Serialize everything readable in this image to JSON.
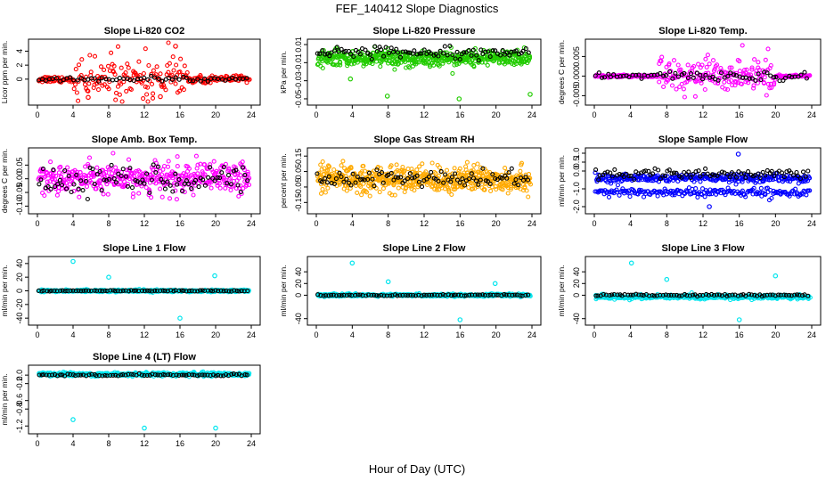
{
  "title": "FEF_140412  Slope Diagnostics",
  "xlabel": "Hour of Day (UTC)",
  "colors": {
    "red": "#ff0000",
    "green": "#22cc00",
    "magenta": "#ff00ff",
    "orange": "#ffaa00",
    "blue": "#0000ff",
    "cyan": "#00e5ee",
    "black": "#000000"
  },
  "chart_data": [
    {
      "type": "scatter",
      "title": "Slope Li-820 CO2",
      "ylabel": "Licor ppm per min.",
      "xlim": [
        0,
        24
      ],
      "ylim": [
        -3.2,
        5.2
      ],
      "xticks": [
        "0",
        "4",
        "8",
        "12",
        "16",
        "20",
        "24"
      ],
      "yticks": [
        "0",
        "2",
        "4"
      ],
      "series": [
        {
          "color": "red",
          "pattern": {
            "center": 0.0,
            "spread": 0.35,
            "burst": 3.0,
            "burst_range": [
              4,
              17
            ],
            "count": 260
          },
          "outliers": [
            [
              5.7,
              -2.6
            ],
            [
              15.5,
              4.7
            ],
            [
              13.8,
              -2.5
            ]
          ]
        },
        {
          "color": "black",
          "pattern": {
            "center": 0.0,
            "spread": 0.2,
            "count": 60
          }
        }
      ]
    },
    {
      "type": "scatter",
      "title": "Slope Li-820 Pressure",
      "ylabel": "kPa per min.",
      "xlim": [
        0,
        24
      ],
      "ylim": [
        -0.053,
        0.012
      ],
      "xticks": [
        "0",
        "4",
        "8",
        "12",
        "16",
        "20",
        "24"
      ],
      "yticks": [
        "-0.05",
        "-0.03",
        "-0.01",
        "0.01"
      ],
      "series": [
        {
          "color": "green",
          "pattern": {
            "center": -0.005,
            "spread": 0.006,
            "count": 520
          },
          "outliers": [
            [
              3.8,
              -0.028
            ],
            [
              7.9,
              -0.047
            ],
            [
              15.9,
              -0.05
            ],
            [
              23.8,
              -0.045
            ]
          ]
        },
        {
          "color": "black",
          "pattern": {
            "center": 0.002,
            "spread": 0.004,
            "count": 90
          }
        }
      ]
    },
    {
      "type": "scatter",
      "title": "Slope Li-820 Temp.",
      "ylabel": "degrees C per min.",
      "xlim": [
        0,
        24
      ],
      "ylim": [
        -0.0065,
        0.0085
      ],
      "xticks": [
        "0",
        "4",
        "8",
        "12",
        "16",
        "20",
        "24"
      ],
      "yticks": [
        "-0.005",
        "0.000",
        "0.005"
      ],
      "series": [
        {
          "color": "magenta",
          "pattern": {
            "center": 0.0,
            "spread": 0.0002,
            "burst": 0.004,
            "burst_range": [
              7,
              20
            ],
            "count": 340
          }
        },
        {
          "color": "black",
          "pattern": {
            "center": 0.0,
            "spread": 0.0008,
            "count": 70
          }
        }
      ]
    },
    {
      "type": "scatter",
      "title": "Slope Amb. Box Temp.",
      "ylabel": "degrees C per min.",
      "xlim": [
        0,
        24
      ],
      "ylim": [
        -0.115,
        0.1
      ],
      "xticks": [
        "0",
        "4",
        "8",
        "12",
        "16",
        "20",
        "24"
      ],
      "yticks": [
        "-0.10",
        "-0.05",
        "0.00",
        "0.05"
      ],
      "series": [
        {
          "color": "magenta",
          "pattern": {
            "center": 0.0,
            "spread": 0.04,
            "count": 420
          }
        },
        {
          "color": "black",
          "pattern": {
            "center": 0.0,
            "spread": 0.04,
            "count": 90
          }
        }
      ]
    },
    {
      "type": "scatter",
      "title": "Slope Gas Stream RH",
      "ylabel": "percent per min.",
      "xlim": [
        0,
        24
      ],
      "ylim": [
        -0.2,
        0.18
      ],
      "xticks": [
        "0",
        "4",
        "8",
        "12",
        "16",
        "20",
        "24"
      ],
      "yticks": [
        "-0.15",
        "-0.05",
        "0.05",
        "0.15"
      ],
      "series": [
        {
          "color": "orange",
          "pattern": {
            "center": 0.0,
            "spread": 0.06,
            "count": 560
          }
        },
        {
          "color": "black",
          "pattern": {
            "center": 0.0,
            "spread": 0.04,
            "count": 90
          }
        }
      ]
    },
    {
      "type": "scatter",
      "title": "Slope Sample Flow",
      "ylabel": "ml/min per min.",
      "xlim": [
        0,
        24
      ],
      "ylim": [
        -2.2,
        1.1
      ],
      "xticks": [
        "0",
        "4",
        "8",
        "12",
        "16",
        "20",
        "24"
      ],
      "yticks": [
        "-2.0",
        "-1.0",
        "0.0",
        "0.5",
        "1.0"
      ],
      "series": [
        {
          "color": "blue",
          "pattern": {
            "center": -0.4,
            "spread": 0.15,
            "count": 300
          }
        },
        {
          "color": "blue",
          "pattern": {
            "center": -1.2,
            "spread": 0.18,
            "count": 200
          },
          "outliers": [
            [
              12.7,
              -2.0
            ],
            [
              15.9,
              0.95
            ]
          ]
        },
        {
          "color": "black",
          "pattern": {
            "center": -0.2,
            "spread": 0.2,
            "count": 90
          }
        }
      ]
    },
    {
      "type": "scatter",
      "title": "Slope Line 1 Flow",
      "ylabel": "ml/min per min.",
      "xlim": [
        0,
        24
      ],
      "ylim": [
        -45,
        45
      ],
      "xticks": [
        "0",
        "4",
        "8",
        "12",
        "16",
        "20",
        "24"
      ],
      "yticks": [
        "-40",
        "-20",
        "0",
        "20",
        "40"
      ],
      "series": [
        {
          "color": "cyan",
          "pattern": {
            "center": 0.0,
            "spread": 1.2,
            "count": 420
          },
          "outliers": [
            [
              4.0,
              43
            ],
            [
              8.0,
              20
            ],
            [
              16.0,
              -40
            ],
            [
              19.9,
              22
            ]
          ]
        },
        {
          "color": "black",
          "pattern": {
            "center": 0.0,
            "spread": 0.5,
            "count": 80
          }
        }
      ]
    },
    {
      "type": "scatter",
      "title": "Slope Line 2 Flow",
      "ylabel": "ml/min per min.",
      "xlim": [
        0,
        24
      ],
      "ylim": [
        -45,
        60
      ],
      "xticks": [
        "0",
        "4",
        "8",
        "12",
        "16",
        "20",
        "24"
      ],
      "yticks": [
        "-40",
        "0",
        "20",
        "40"
      ],
      "series": [
        {
          "color": "cyan",
          "pattern": {
            "center": 0.0,
            "spread": 1.5,
            "count": 420
          },
          "outliers": [
            [
              4.0,
              55
            ],
            [
              8.0,
              23
            ],
            [
              16.0,
              -42
            ],
            [
              19.9,
              20
            ]
          ]
        },
        {
          "color": "black",
          "pattern": {
            "center": 0.0,
            "spread": 0.8,
            "count": 80
          }
        }
      ]
    },
    {
      "type": "scatter",
      "title": "Slope Line 3 Flow",
      "ylabel": "ml/min per min.",
      "xlim": [
        0,
        24
      ],
      "ylim": [
        -45,
        60
      ],
      "xticks": [
        "0",
        "4",
        "8",
        "12",
        "16",
        "20",
        "24"
      ],
      "yticks": [
        "-40",
        "0",
        "20",
        "40"
      ],
      "series": [
        {
          "color": "cyan",
          "pattern": {
            "center": -3.0,
            "spread": 2.5,
            "count": 420
          },
          "outliers": [
            [
              4.1,
              55
            ],
            [
              8.0,
              27
            ],
            [
              16.0,
              -42
            ],
            [
              20.0,
              33
            ]
          ]
        },
        {
          "color": "black",
          "pattern": {
            "center": 0.0,
            "spread": 1.2,
            "count": 80
          }
        }
      ]
    },
    {
      "type": "scatter",
      "title": "Slope Line 4 (LT) Flow",
      "ylabel": "ml/min per min.",
      "xlim": [
        0,
        24
      ],
      "ylim": [
        -1.3,
        0.15
      ],
      "xticks": [
        "0",
        "4",
        "8",
        "12",
        "16",
        "20",
        "24"
      ],
      "yticks": [
        "-1.2",
        "-0.8",
        "-0.6",
        "-0.2",
        "0.0"
      ],
      "series": [
        {
          "color": "cyan",
          "pattern": {
            "center": 0.02,
            "spread": 0.03,
            "count": 440
          },
          "outliers": [
            [
              4.0,
              -1.05
            ],
            [
              12.0,
              -1.25
            ],
            [
              20.0,
              -1.25
            ]
          ]
        },
        {
          "color": "black",
          "pattern": {
            "center": 0.0,
            "spread": 0.02,
            "count": 80
          }
        }
      ]
    }
  ]
}
